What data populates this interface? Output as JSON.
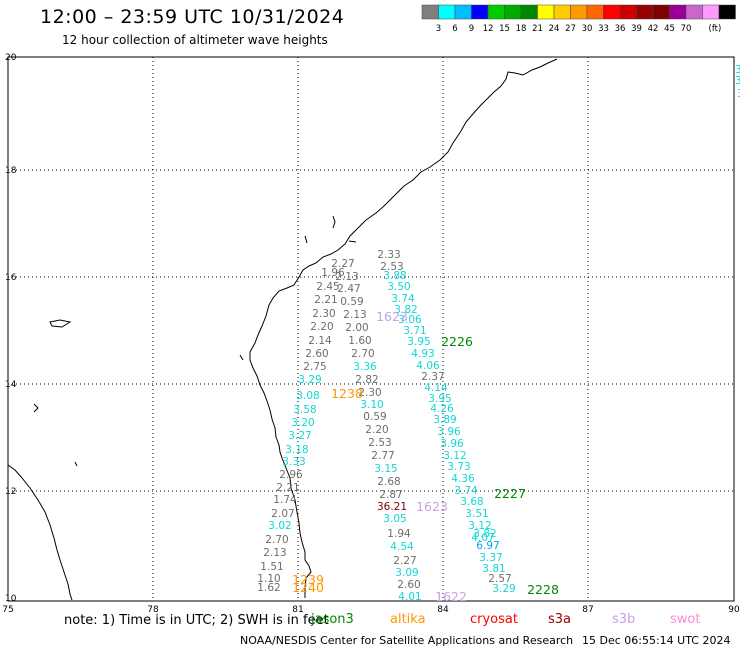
{
  "title": "12:00 – 23:59 UTC 10/31/2024",
  "subtitle": "12 hour collection of altimeter wave heights",
  "colorbar": {
    "unit": "(ft)",
    "colors": [
      "#7f7f7f",
      "#00ffff",
      "#00bfff",
      "#0000ff",
      "#00cc00",
      "#00aa00",
      "#008800",
      "#ffff00",
      "#ffcc00",
      "#ff9900",
      "#ff6600",
      "#ff0000",
      "#cc0000",
      "#990000",
      "#800000",
      "#990099",
      "#cc66cc",
      "#ff99ff",
      "#000000"
    ],
    "labels": [
      "3",
      "6",
      "9",
      "12",
      "15",
      "18",
      "21",
      "24",
      "27",
      "30",
      "33",
      "36",
      "39",
      "42",
      "45",
      "70"
    ]
  },
  "axes": {
    "x_ticks": [
      "75",
      "78",
      "81",
      "84",
      "87",
      "90"
    ],
    "y_ticks": [
      "10",
      "12",
      "14",
      "16",
      "18",
      "20"
    ]
  },
  "edge_values": [
    "3.",
    "3",
    "3"
  ],
  "tracks": {
    "track1": [
      "2.27",
      "1.96",
      "2.13",
      "2.47",
      "2.45",
      "2.21",
      "2.30",
      "2.20",
      "2.14",
      "2.60",
      "2.75",
      "3.29",
      "3.08",
      "3.58",
      "3.20",
      "3.27",
      "3.18",
      "3.33",
      "2.96",
      "2.21",
      "1.74",
      "2.07",
      "3.02",
      "2.70",
      "2.13",
      "1.51",
      "1.10",
      "1.62"
    ],
    "track2": [
      "0.59",
      "2.13",
      "2.00",
      "1.60",
      "2.70",
      "3.36",
      "2.82",
      "2.30",
      "3.10",
      "0.59",
      "2.20",
      "2.53",
      "2.77",
      "3.15",
      "2.68",
      "2.87",
      "36.21",
      "3.05",
      "1.94",
      "4.54",
      "2.27",
      "3.09",
      "2.60",
      "4.01"
    ],
    "track3": [
      "2.33",
      "2.53",
      "3.88",
      "3.50",
      "3.74",
      "3.82",
      "3.06",
      "3.71",
      "3.95",
      "4.93",
      "4.06",
      "2.37",
      "4.14",
      "3.95",
      "4.26",
      "3.89",
      "3.96",
      "3.96",
      "3.12",
      "3.73",
      "4.36",
      "3.74",
      "3.68",
      "3.51",
      "3.12",
      "4.07",
      "3.82",
      "6.97",
      "3.37",
      "3.81",
      "2.57",
      "3.29"
    ]
  },
  "pass_labels": {
    "p1623a": "1623",
    "p2226": "2226",
    "p1238": "1238",
    "p1623b": "1623",
    "p2227": "2227",
    "p1239": "1239",
    "p1240": "1240",
    "p1622": "1622",
    "p2228": "2228"
  },
  "note_text": "note:  1) Time is in UTC; 2) SWH is in feet",
  "legend": [
    {
      "name": "jason3",
      "color": "#008800"
    },
    {
      "name": "altika",
      "color": "#ff9900"
    },
    {
      "name": "cryosat",
      "color": "#ff0000"
    },
    {
      "name": "s3a",
      "color": "#990000"
    },
    {
      "name": "s3b",
      "color": "#c8a0e6"
    },
    {
      "name": "swot",
      "color": "#ff88dd"
    }
  ],
  "footer_left": "NOAA/NESDIS Center for Satellite Applications and Research",
  "footer_right": "15 Dec 06:55:14 UTC 2024"
}
